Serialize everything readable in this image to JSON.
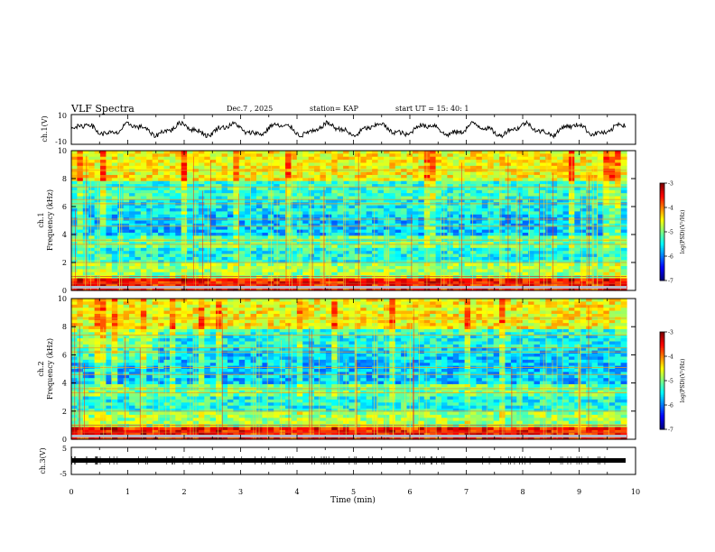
{
  "header": {
    "title": "VLF Spectra",
    "date": "Dec.7 , 2025",
    "station": "station= KAP",
    "start": "start UT =  15: 40: 1"
  },
  "chart_data": [
    {
      "id": "ch1-waveform",
      "type": "line",
      "ylabel": "ch.1(V)",
      "ylim": [
        -10,
        10
      ],
      "yticks": [
        "10",
        "-10"
      ],
      "xlim": [
        0,
        9.83
      ],
      "note": "noisy oscillating signal roughly between -5 and +5 V"
    },
    {
      "id": "ch1-spectrogram",
      "type": "heatmap",
      "ylabel": "ch.1\nFrequency (kHz)",
      "ylim": [
        0,
        10
      ],
      "yticks": [
        "0",
        "2",
        "4",
        "6",
        "8",
        "10"
      ],
      "colorbar": {
        "label": "log(PSD)(V²/Hz)",
        "range": [
          -7,
          -3
        ],
        "ticks": [
          "-3",
          "-4",
          "-5",
          "-6",
          "-7"
        ]
      }
    },
    {
      "id": "ch2-spectrogram",
      "type": "heatmap",
      "ylabel": "ch.2\nFrequency (kHz)",
      "ylim": [
        0,
        10
      ],
      "yticks": [
        "0",
        "2",
        "4",
        "6",
        "8",
        "10"
      ],
      "colorbar": {
        "label": "log(PSD)(V²/Hz)",
        "range": [
          -7,
          -3
        ],
        "ticks": [
          "-3",
          "-4",
          "-5",
          "-6",
          "-7"
        ]
      }
    },
    {
      "id": "ch3-waveform",
      "type": "line",
      "ylabel": "ch.3(V)",
      "ylim": [
        -5,
        5
      ],
      "yticks": [
        "5",
        "-5"
      ],
      "note": "near-constant level about -1 V with small spikes"
    }
  ],
  "xaxis": {
    "label": "Time  (min)",
    "range": [
      0,
      10
    ],
    "ticks": [
      "0",
      "1",
      "2",
      "3",
      "4",
      "5",
      "6",
      "7",
      "8",
      "9",
      "10"
    ]
  },
  "colors": {
    "line": "#000000",
    "frame": "#000000"
  }
}
